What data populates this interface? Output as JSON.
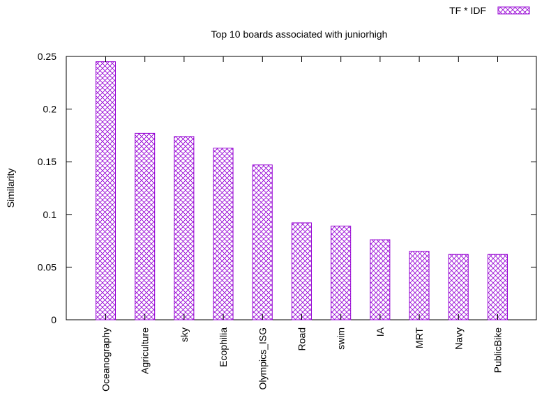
{
  "chart_data": {
    "type": "bar",
    "title": "Top 10 boards associated with juniorhigh",
    "xlabel": "",
    "ylabel": "Similarity",
    "ylim": [
      0,
      0.25
    ],
    "yticks": [
      0,
      0.05,
      0.1,
      0.15,
      0.2,
      0.25
    ],
    "ytick_labels": [
      "0",
      "0.05",
      "0.1",
      "0.15",
      "0.2",
      "0.25"
    ],
    "grid": false,
    "legend_position": "top-right",
    "categories": [
      "Oceanography",
      "Agriculture",
      "sky",
      "Ecophilia",
      "Olympics_ISG",
      "Road",
      "swim",
      "IA",
      "MRT",
      "Navy",
      "PublicBike"
    ],
    "series": [
      {
        "name": "TF * IDF",
        "color": "#9400d3",
        "pattern": "crosshatch",
        "values": [
          0.245,
          0.177,
          0.174,
          0.163,
          0.147,
          0.092,
          0.089,
          0.076,
          0.065,
          0.062,
          0.062
        ]
      }
    ]
  }
}
